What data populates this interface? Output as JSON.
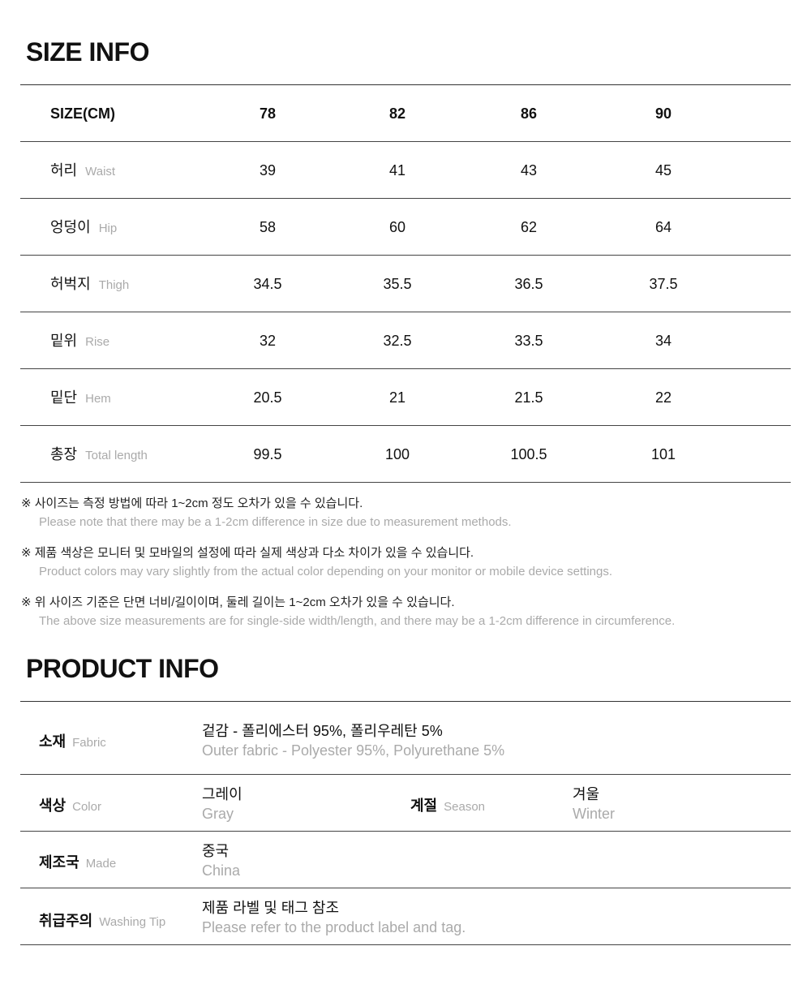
{
  "size_info": {
    "title": "SIZE INFO",
    "header": {
      "label": "SIZE(CM)",
      "sizes": [
        "78",
        "82",
        "86",
        "90"
      ]
    },
    "rows": [
      {
        "ko": "허리",
        "en": "Waist",
        "values": [
          "39",
          "41",
          "43",
          "45"
        ]
      },
      {
        "ko": "엉덩이",
        "en": "Hip",
        "values": [
          "58",
          "60",
          "62",
          "64"
        ]
      },
      {
        "ko": "허벅지",
        "en": "Thigh",
        "values": [
          "34.5",
          "35.5",
          "36.5",
          "37.5"
        ]
      },
      {
        "ko": "밑위",
        "en": "Rise",
        "values": [
          "32",
          "32.5",
          "33.5",
          "34"
        ]
      },
      {
        "ko": "밑단",
        "en": "Hem",
        "values": [
          "20.5",
          "21",
          "21.5",
          "22"
        ]
      },
      {
        "ko": "총장",
        "en": "Total length",
        "values": [
          "99.5",
          "100",
          "100.5",
          "101"
        ]
      }
    ],
    "notes": [
      {
        "ko": "※ 사이즈는 측정 방법에 따라 1~2cm 정도 오차가 있을 수 있습니다.",
        "en": "Please note that there may be a 1-2cm difference in size due to measurement methods."
      },
      {
        "ko": "※ 제품 색상은 모니터 및 모바일의 설정에 따라 실제 색상과 다소 차이가 있을 수 있습니다.",
        "en": "Product colors may vary slightly from the actual color depending on your monitor or mobile device settings."
      },
      {
        "ko": "※ 위 사이즈 기준은 단면 너비/길이이며, 둘레 길이는 1~2cm 오차가 있을 수 있습니다.",
        "en": "The above size measurements are for single-side width/length, and there may be a 1-2cm difference in circumference."
      }
    ]
  },
  "product_info": {
    "title": "PRODUCT INFO",
    "fabric": {
      "label_ko": "소재",
      "label_en": "Fabric",
      "value_ko": "겉감 - 폴리에스터 95%, 폴리우레탄 5%",
      "value_en": "Outer fabric - Polyester 95%, Polyurethane 5%"
    },
    "color": {
      "label_ko": "색상",
      "label_en": "Color",
      "value_ko": "그레이",
      "value_en": "Gray"
    },
    "season": {
      "label_ko": "계절",
      "label_en": "Season",
      "value_ko": "겨울",
      "value_en": "Winter"
    },
    "made": {
      "label_ko": "제조국",
      "label_en": "Made",
      "value_ko": "중국",
      "value_en": "China"
    },
    "washing": {
      "label_ko": "취급주의",
      "label_en": "Washing Tip",
      "value_ko": "제품 라벨 및 태그 참조",
      "value_en": "Please refer to the product label and tag."
    }
  }
}
